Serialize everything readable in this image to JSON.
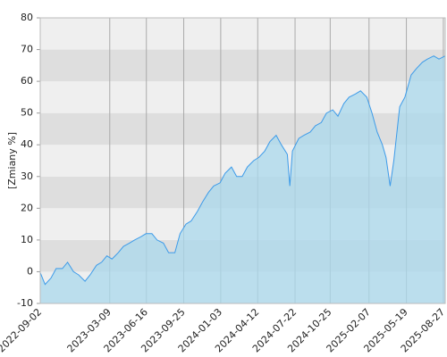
{
  "chart_data": {
    "type": "area",
    "y_label": "[Zmiany %]",
    "x": [
      "2022-09-01",
      "2022-09-15",
      "2022-10-01",
      "2022-10-15",
      "2022-11-01",
      "2022-11-15",
      "2022-12-01",
      "2022-12-15",
      "2023-01-01",
      "2023-01-15",
      "2023-02-01",
      "2023-02-15",
      "2023-03-01",
      "2023-03-15",
      "2023-04-01",
      "2023-04-15",
      "2023-05-01",
      "2023-05-15",
      "2023-06-01",
      "2023-06-15",
      "2023-07-01",
      "2023-07-15",
      "2023-08-01",
      "2023-08-15",
      "2023-09-01",
      "2023-09-15",
      "2023-10-01",
      "2023-10-15",
      "2023-11-01",
      "2023-11-15",
      "2023-12-01",
      "2023-12-15",
      "2024-01-01",
      "2024-01-15",
      "2024-02-01",
      "2024-02-15",
      "2024-03-01",
      "2024-03-15",
      "2024-04-01",
      "2024-04-15",
      "2024-05-01",
      "2024-05-15",
      "2024-06-01",
      "2024-06-15",
      "2024-07-01",
      "2024-07-08",
      "2024-07-15",
      "2024-08-01",
      "2024-08-15",
      "2024-09-01",
      "2024-09-15",
      "2024-10-01",
      "2024-10-15",
      "2024-11-01",
      "2024-11-15",
      "2024-12-01",
      "2024-12-15",
      "2025-01-01",
      "2025-01-15",
      "2025-02-01",
      "2025-02-15",
      "2025-03-01",
      "2025-03-15",
      "2025-03-25",
      "2025-04-05",
      "2025-04-15",
      "2025-05-01",
      "2025-05-15",
      "2025-06-01",
      "2025-06-15",
      "2025-07-01",
      "2025-07-15",
      "2025-08-01",
      "2025-08-15",
      "2025-09-01"
    ],
    "series": [
      {
        "color": "#3d9be9",
        "fill": "#aad8ec",
        "values": [
          0,
          -4,
          -2,
          1,
          1,
          3,
          0,
          -1,
          -3,
          -1,
          2,
          3,
          5,
          4,
          6,
          8,
          9,
          10,
          11,
          12,
          12,
          10,
          9,
          6,
          6,
          12,
          15,
          16,
          19,
          22,
          25,
          27,
          28,
          31,
          33,
          30,
          30,
          33,
          35,
          36,
          38,
          41,
          43,
          40,
          37,
          27,
          38,
          42,
          43,
          44,
          46,
          47,
          50,
          51,
          49,
          53,
          55,
          56,
          57,
          55,
          50,
          44,
          40,
          36,
          27,
          35,
          52,
          55,
          62,
          64,
          66,
          67,
          68,
          67,
          68
        ]
      }
    ],
    "xlim": [
      "2022-09-02",
      "2025-09-01"
    ],
    "xticks": [
      "2022-09-02",
      "2023-03-09",
      "2023-06-16",
      "2023-09-25",
      "2024-01-03",
      "2024-04-12",
      "2024-07-22",
      "2024-10-25",
      "2025-02-07",
      "2025-05-19",
      "2025-08-27"
    ],
    "ylim": [
      -10,
      80
    ],
    "yticks": [
      -10,
      0,
      10,
      20,
      30,
      40,
      50,
      60,
      70,
      80
    ],
    "grid": true,
    "band_colors": [
      "#efefef",
      "#dedede"
    ]
  }
}
